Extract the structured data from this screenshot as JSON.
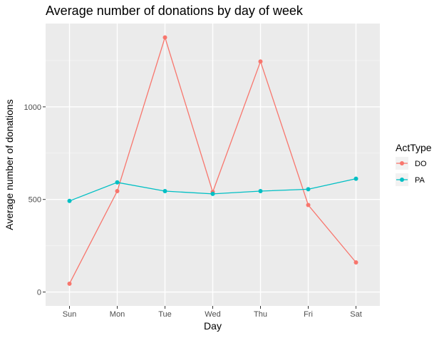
{
  "chart_data": {
    "type": "line",
    "title": "Average number of donations by day of week",
    "xlabel": "Day",
    "ylabel": "Average number of donations",
    "categories": [
      "Sun",
      "Mon",
      "Tue",
      "Wed",
      "Thu",
      "Fri",
      "Sat"
    ],
    "yticks": [
      0,
      500,
      1000
    ],
    "ylim": [
      -75,
      1450
    ],
    "grid": true,
    "legend": {
      "title": "ActType",
      "position": "right"
    },
    "series": [
      {
        "name": "DO",
        "color": "#F8766D",
        "values": [
          45,
          545,
          1375,
          540,
          1245,
          470,
          160
        ]
      },
      {
        "name": "PA",
        "color": "#00BFC4",
        "values": [
          492,
          592,
          545,
          530,
          545,
          555,
          612
        ]
      }
    ]
  }
}
